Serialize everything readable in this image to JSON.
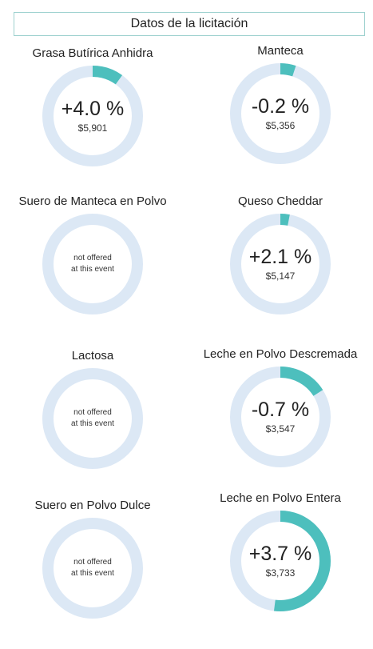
{
  "header": {
    "title": "Datos de la licitación"
  },
  "colors": {
    "ring_bg": "#dce8f5",
    "ring_fill": "#4dbfbd"
  },
  "products": [
    {
      "title": "Grasa Butírica Anhidra",
      "offered": true,
      "change_text": "+4.0 %",
      "price": "$5,901",
      "fill_percent": 10
    },
    {
      "title": "Manteca",
      "offered": true,
      "change_text": "-0.2 %",
      "price": "$5,356",
      "fill_percent": 5
    },
    {
      "title": "Suero de Manteca en Polvo",
      "offered": false,
      "na_line1": "not offered",
      "na_line2": "at this event",
      "fill_percent": 0
    },
    {
      "title": "Queso Cheddar",
      "offered": true,
      "change_text": "+2.1 %",
      "price": "$5,147",
      "fill_percent": 3
    },
    {
      "title": "Lactosa",
      "offered": false,
      "na_line1": "not offered",
      "na_line2": "at this event",
      "fill_percent": 0
    },
    {
      "title": "Leche en Polvo Descremada",
      "offered": true,
      "change_text": "-0.7 %",
      "price": "$3,547",
      "fill_percent": 16
    },
    {
      "title": "Suero en Polvo Dulce",
      "offered": false,
      "na_line1": "not offered",
      "na_line2": "at this event",
      "fill_percent": 0
    },
    {
      "title": "Leche en Polvo Entera",
      "offered": true,
      "change_text": "+3.7 %",
      "price": "$3,733",
      "fill_percent": 52
    }
  ]
}
